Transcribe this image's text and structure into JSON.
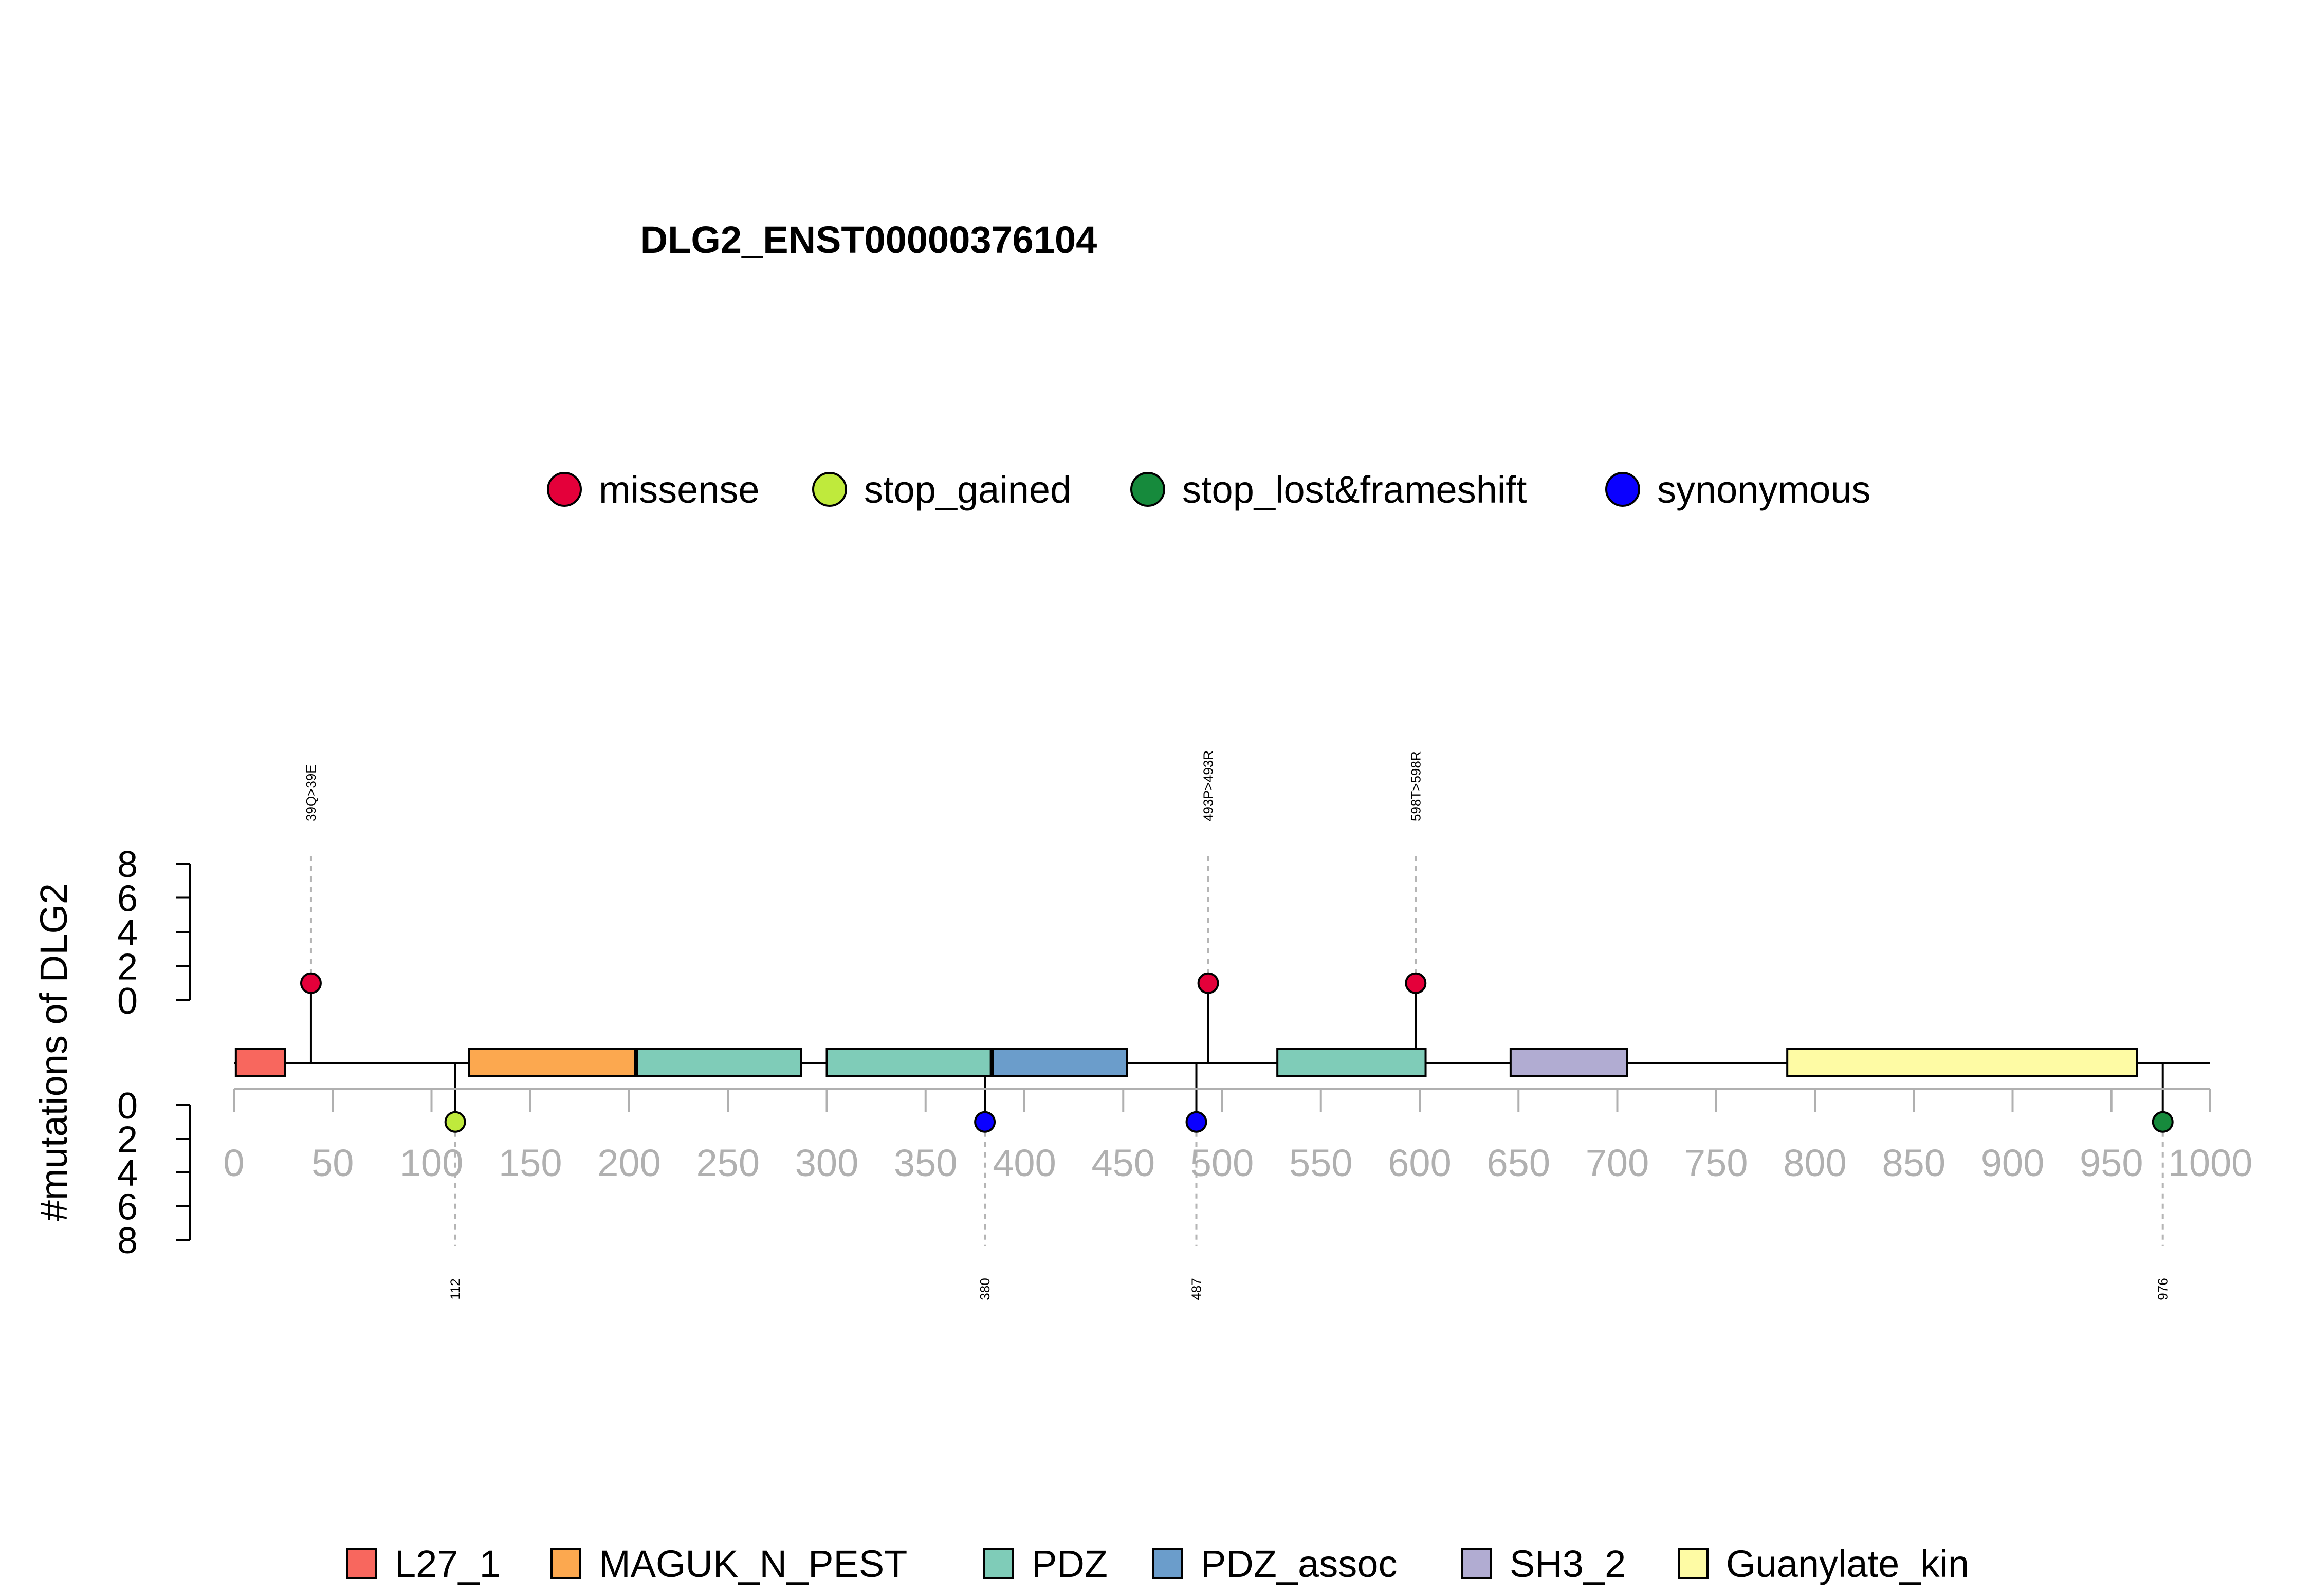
{
  "chart_data": {
    "type": "lollipop",
    "title": "DLG2_ENST00000376104",
    "ylabel": "#mutations of DLG2",
    "xlim": [
      0,
      1000
    ],
    "x_ticks": [
      0,
      50,
      100,
      150,
      200,
      250,
      300,
      350,
      400,
      450,
      500,
      550,
      600,
      650,
      700,
      750,
      800,
      850,
      900,
      950,
      1000
    ],
    "upper_axis": {
      "ticks": [
        0,
        2,
        4,
        6,
        8
      ],
      "ylim": [
        0,
        8
      ]
    },
    "lower_axis": {
      "ticks": [
        0,
        2,
        4,
        6,
        8
      ],
      "ylim": [
        0,
        8
      ]
    },
    "mutation_types": [
      {
        "name": "missense",
        "color": "#E4003A"
      },
      {
        "name": "stop_gained",
        "color": "#BFEA3C"
      },
      {
        "name": "stop_lost&frameshift",
        "color": "#168A3C"
      },
      {
        "name": "synonymous",
        "color": "#0A00FF"
      }
    ],
    "upper_mutations": [
      {
        "position": 39,
        "count": 1,
        "type": "missense",
        "label": "39Q>39E"
      },
      {
        "position": 493,
        "count": 1,
        "type": "missense",
        "label": "493P>493R"
      },
      {
        "position": 598,
        "count": 1,
        "type": "missense",
        "label": "598T>598R"
      }
    ],
    "lower_mutations": [
      {
        "position": 112,
        "count": 1,
        "type": "stop_gained",
        "label": "112"
      },
      {
        "position": 380,
        "count": 1,
        "type": "synonymous",
        "label": "380"
      },
      {
        "position": 487,
        "count": 1,
        "type": "synonymous",
        "label": "487"
      },
      {
        "position": 976,
        "count": 1,
        "type": "stop_lost&frameshift",
        "label": "976"
      }
    ],
    "domain_types": [
      {
        "name": "L27_1",
        "color": "#F8675E"
      },
      {
        "name": "MAGUK_N_PEST",
        "color": "#FCA84F"
      },
      {
        "name": "PDZ",
        "color": "#7FCCB8"
      },
      {
        "name": "PDZ_assoc",
        "color": "#6B9DCB"
      },
      {
        "name": "SH3_2",
        "color": "#B1ACD2"
      },
      {
        "name": "Guanylate_kin",
        "color": "#FEFBA4"
      }
    ],
    "domains": [
      {
        "name": "L27_1",
        "start": 1,
        "end": 26
      },
      {
        "name": "MAGUK_N_PEST",
        "start": 119,
        "end": 203
      },
      {
        "name": "PDZ",
        "start": 204,
        "end": 287
      },
      {
        "name": "PDZ",
        "start": 300,
        "end": 383
      },
      {
        "name": "PDZ_assoc",
        "start": 384,
        "end": 452
      },
      {
        "name": "PDZ",
        "start": 528,
        "end": 603
      },
      {
        "name": "SH3_2",
        "start": 646,
        "end": 705
      },
      {
        "name": "Guanylate_kin",
        "start": 786,
        "end": 963
      }
    ]
  }
}
